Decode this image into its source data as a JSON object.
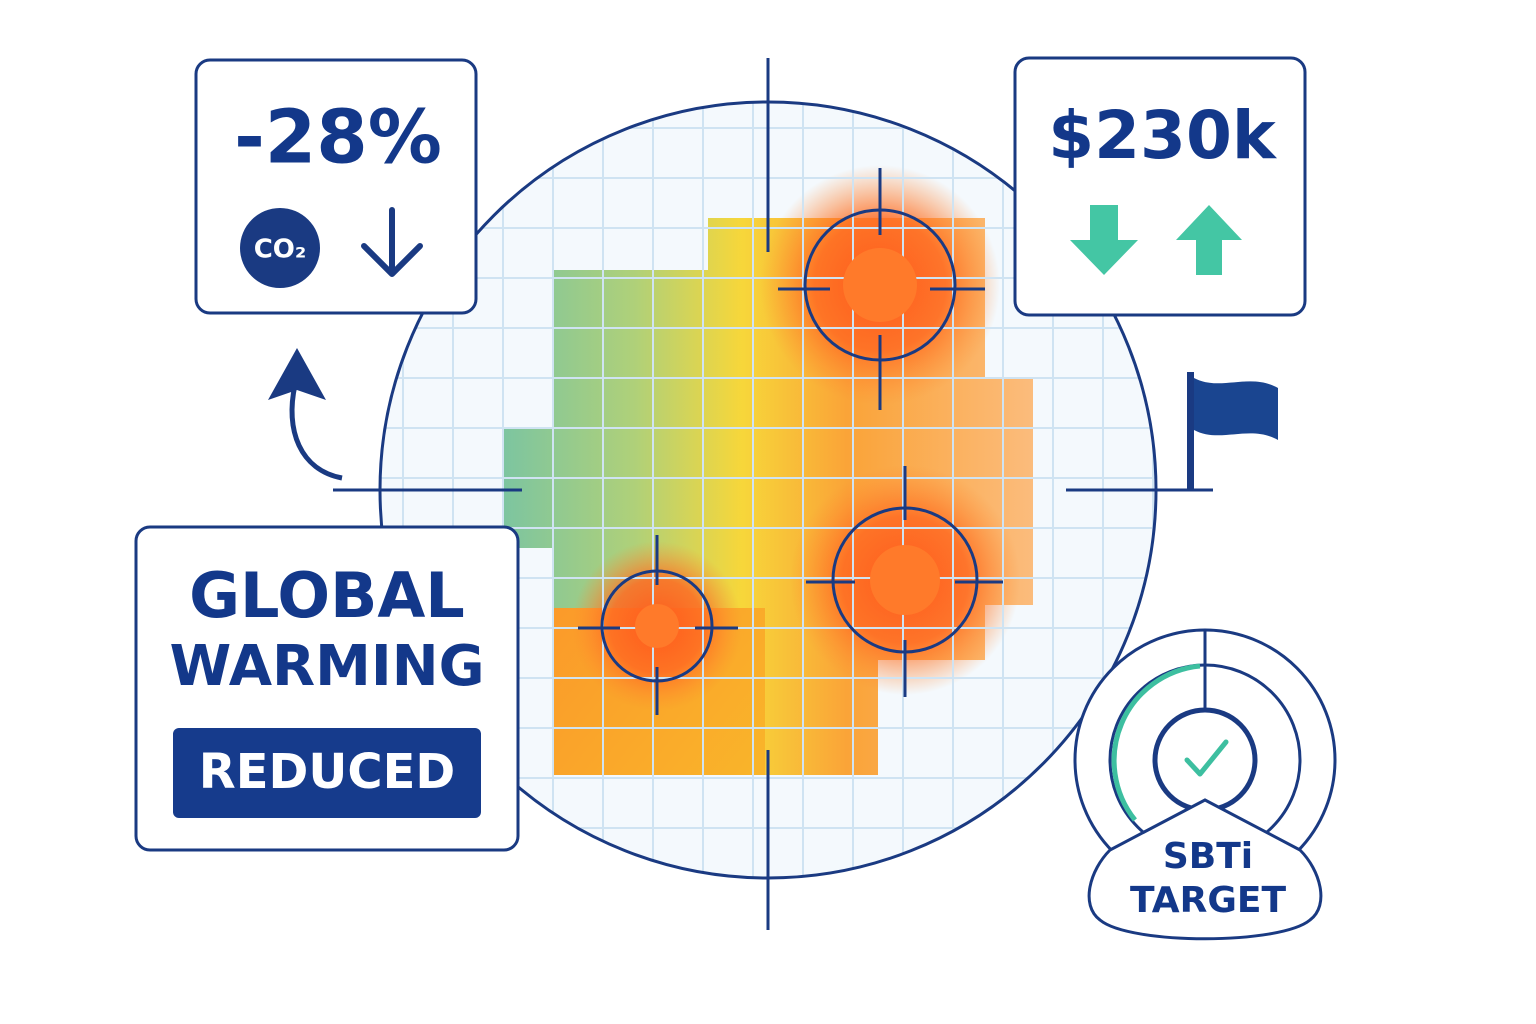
{
  "stat_cards": [
    {
      "value": "-28%",
      "icon_label": "CO₂"
    },
    {
      "value": "$230k"
    }
  ],
  "headline": {
    "lines": [
      "GLOBAL",
      "WARMING"
    ],
    "badge": "REDUCED"
  },
  "target_badge": {
    "lines": [
      "SBTi",
      "TARGET"
    ]
  }
}
